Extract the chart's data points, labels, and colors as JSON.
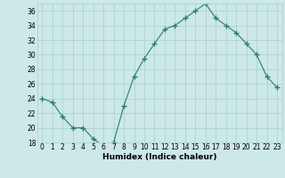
{
  "x": [
    0,
    1,
    2,
    3,
    4,
    5,
    6,
    7,
    8,
    9,
    10,
    11,
    12,
    13,
    14,
    15,
    16,
    17,
    18,
    19,
    20,
    21,
    22,
    23
  ],
  "y": [
    24,
    23.5,
    21.5,
    20,
    20,
    18.5,
    17.5,
    18,
    23,
    27,
    29.5,
    31.5,
    33.5,
    34,
    35,
    36,
    37,
    35,
    34,
    33,
    31.5,
    30,
    27,
    25.5
  ],
  "line_color": "#2d7d6e",
  "marker": "+",
  "marker_size": 4,
  "marker_lw": 1.0,
  "bg_color": "#cce8e8",
  "grid_color": "#aacece",
  "xlabel": "Humidex (Indice chaleur)",
  "ylim": [
    18,
    37
  ],
  "xlim": [
    -0.5,
    23.5
  ],
  "yticks": [
    18,
    20,
    22,
    24,
    26,
    28,
    30,
    32,
    34,
    36
  ],
  "xticks": [
    0,
    1,
    2,
    3,
    4,
    5,
    6,
    7,
    8,
    9,
    10,
    11,
    12,
    13,
    14,
    15,
    16,
    17,
    18,
    19,
    20,
    21,
    22,
    23
  ],
  "tick_fontsize": 5.5,
  "xlabel_fontsize": 6.5,
  "linewidth": 0.8
}
